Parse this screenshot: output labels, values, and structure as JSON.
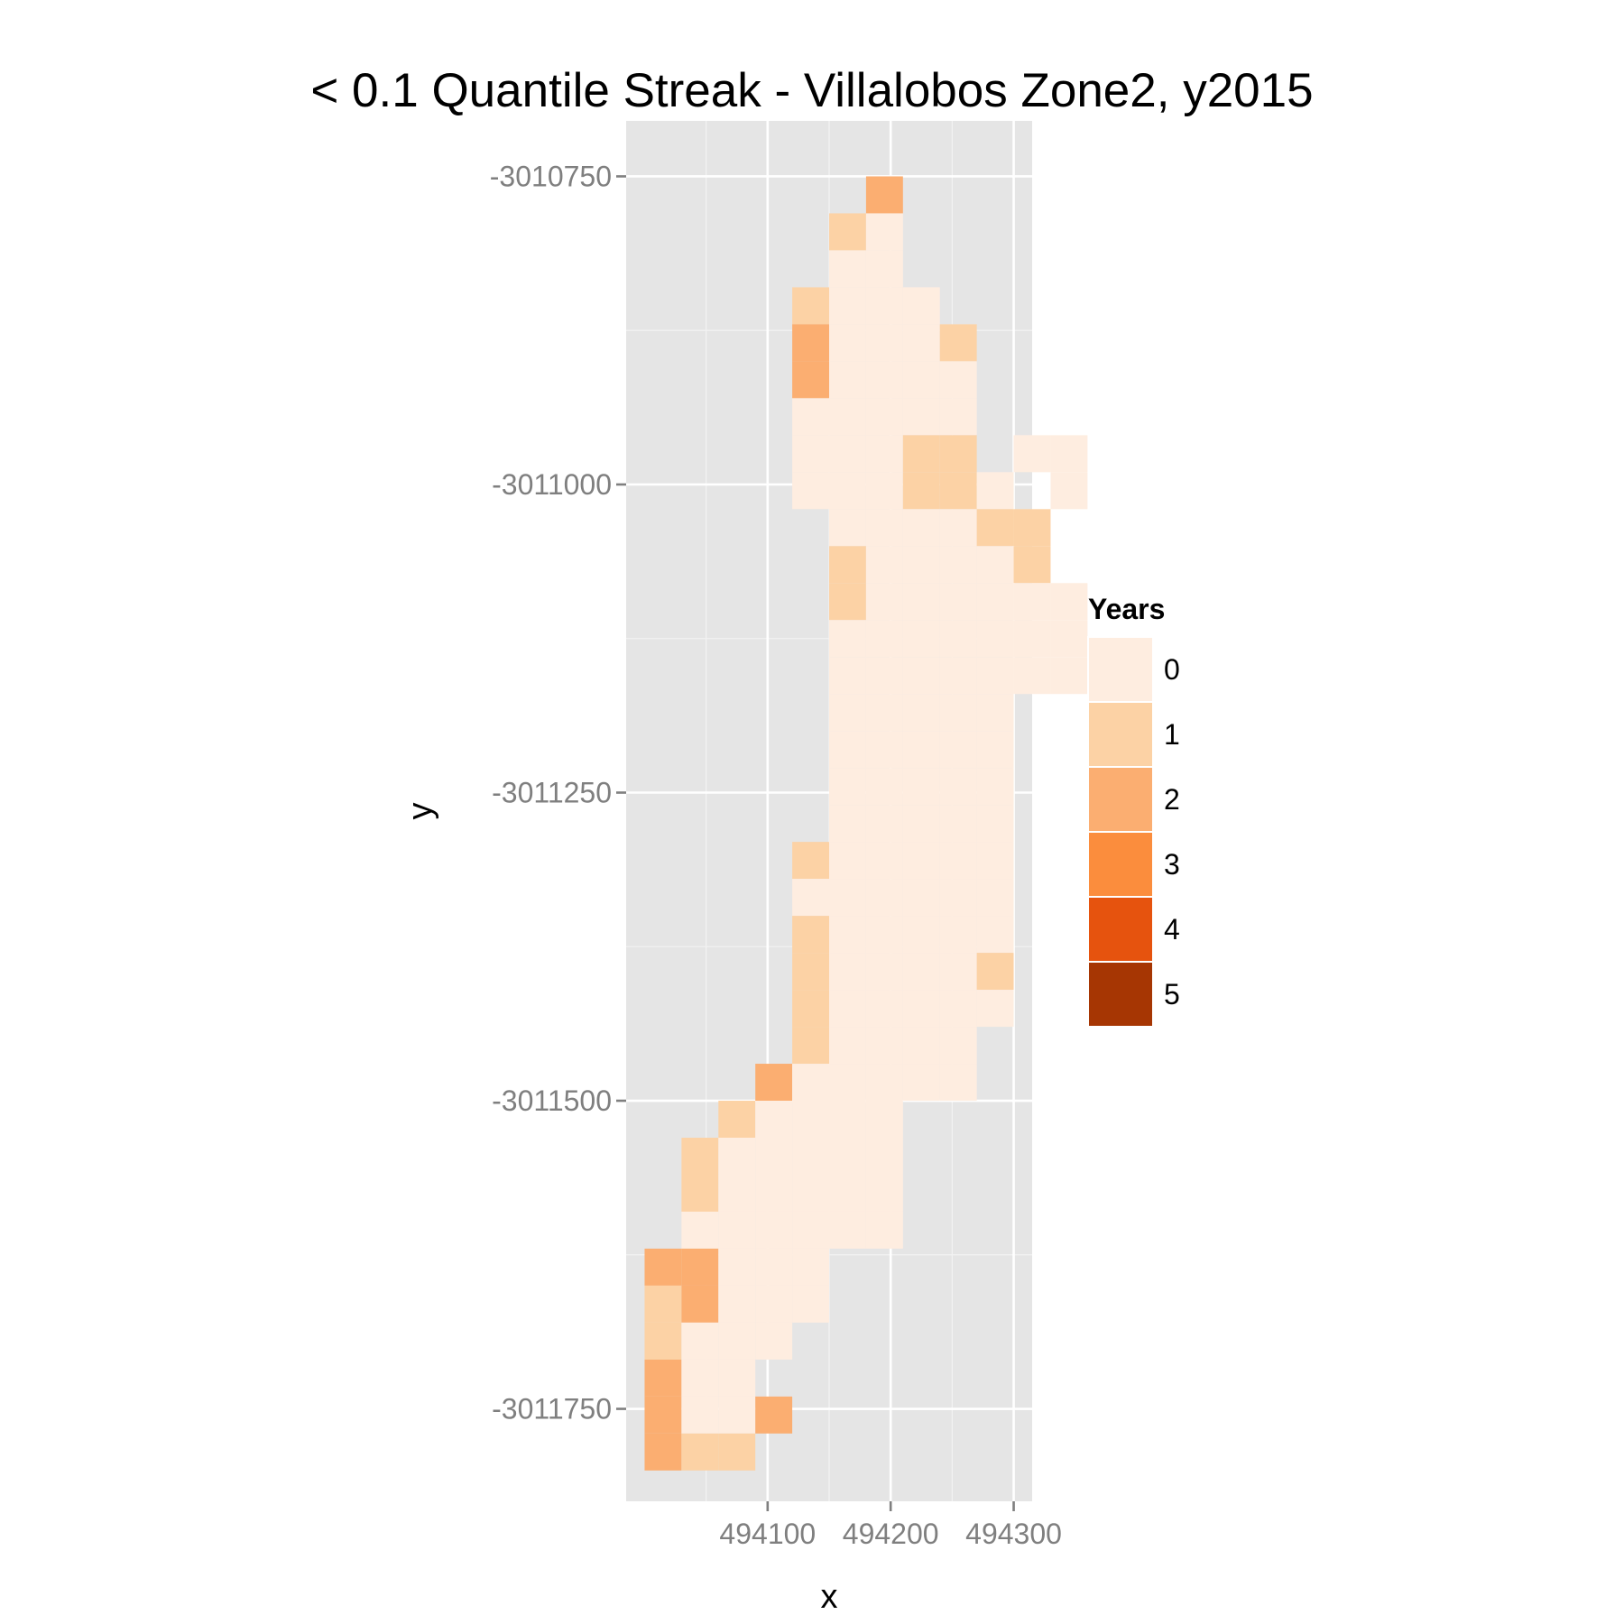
{
  "chart_data": {
    "type": "heatmap",
    "title": "< 0.1 Quantile Streak - Villalobos Zone2, y2015",
    "xlabel": "x",
    "ylabel": "y",
    "x_ticks": [
      494100,
      494200,
      494300
    ],
    "x_tick_labels": [
      "494100",
      "494200",
      "494300"
    ],
    "y_ticks": [
      -3010750,
      -3011000,
      -3011250,
      -3011500,
      -3011750
    ],
    "y_tick_labels": [
      "-3010750",
      "-3011000",
      "-3011250",
      "-3011500",
      "-3011750"
    ],
    "xlim": [
      493985,
      494315
    ],
    "ylim": [
      -3011825,
      -3010705
    ],
    "grid": true,
    "cell_size": 30,
    "legend": {
      "title": "Years",
      "position": "right",
      "labels": [
        "0",
        "1",
        "2",
        "3",
        "4",
        "5"
      ],
      "colors": [
        "#feede0",
        "#fcd2a5",
        "#fbae71",
        "#fb8d3d",
        "#e6530e",
        "#a63603"
      ]
    },
    "x0": 494015,
    "y0": -3010765,
    "rows": [
      "......2.....",
      ".....10.....",
      ".....00.....",
      "....1000....",
      "....20001...",
      "....20000...",
      "....00000...",
      "....00011.00",
      "....000110.0",
      ".....000011.",
      ".....100001.",
      ".....1000000",
      ".....0000000",
      ".....0000000",
      ".....00000..",
      ".....00000..",
      ".....00000..",
      ".....00000..",
      "....100000..",
      "....000000..",
      "....100000..",
      "....100001..",
      "....100000..",
      "....10000...",
      "...200000...",
      "..10000.....",
      ".100000.....",
      ".100000.....",
      ".000000.....",
      "22000.......",
      "12000.......",
      "1000........",
      "200.........",
      "2002........",
      "211........."
    ]
  }
}
